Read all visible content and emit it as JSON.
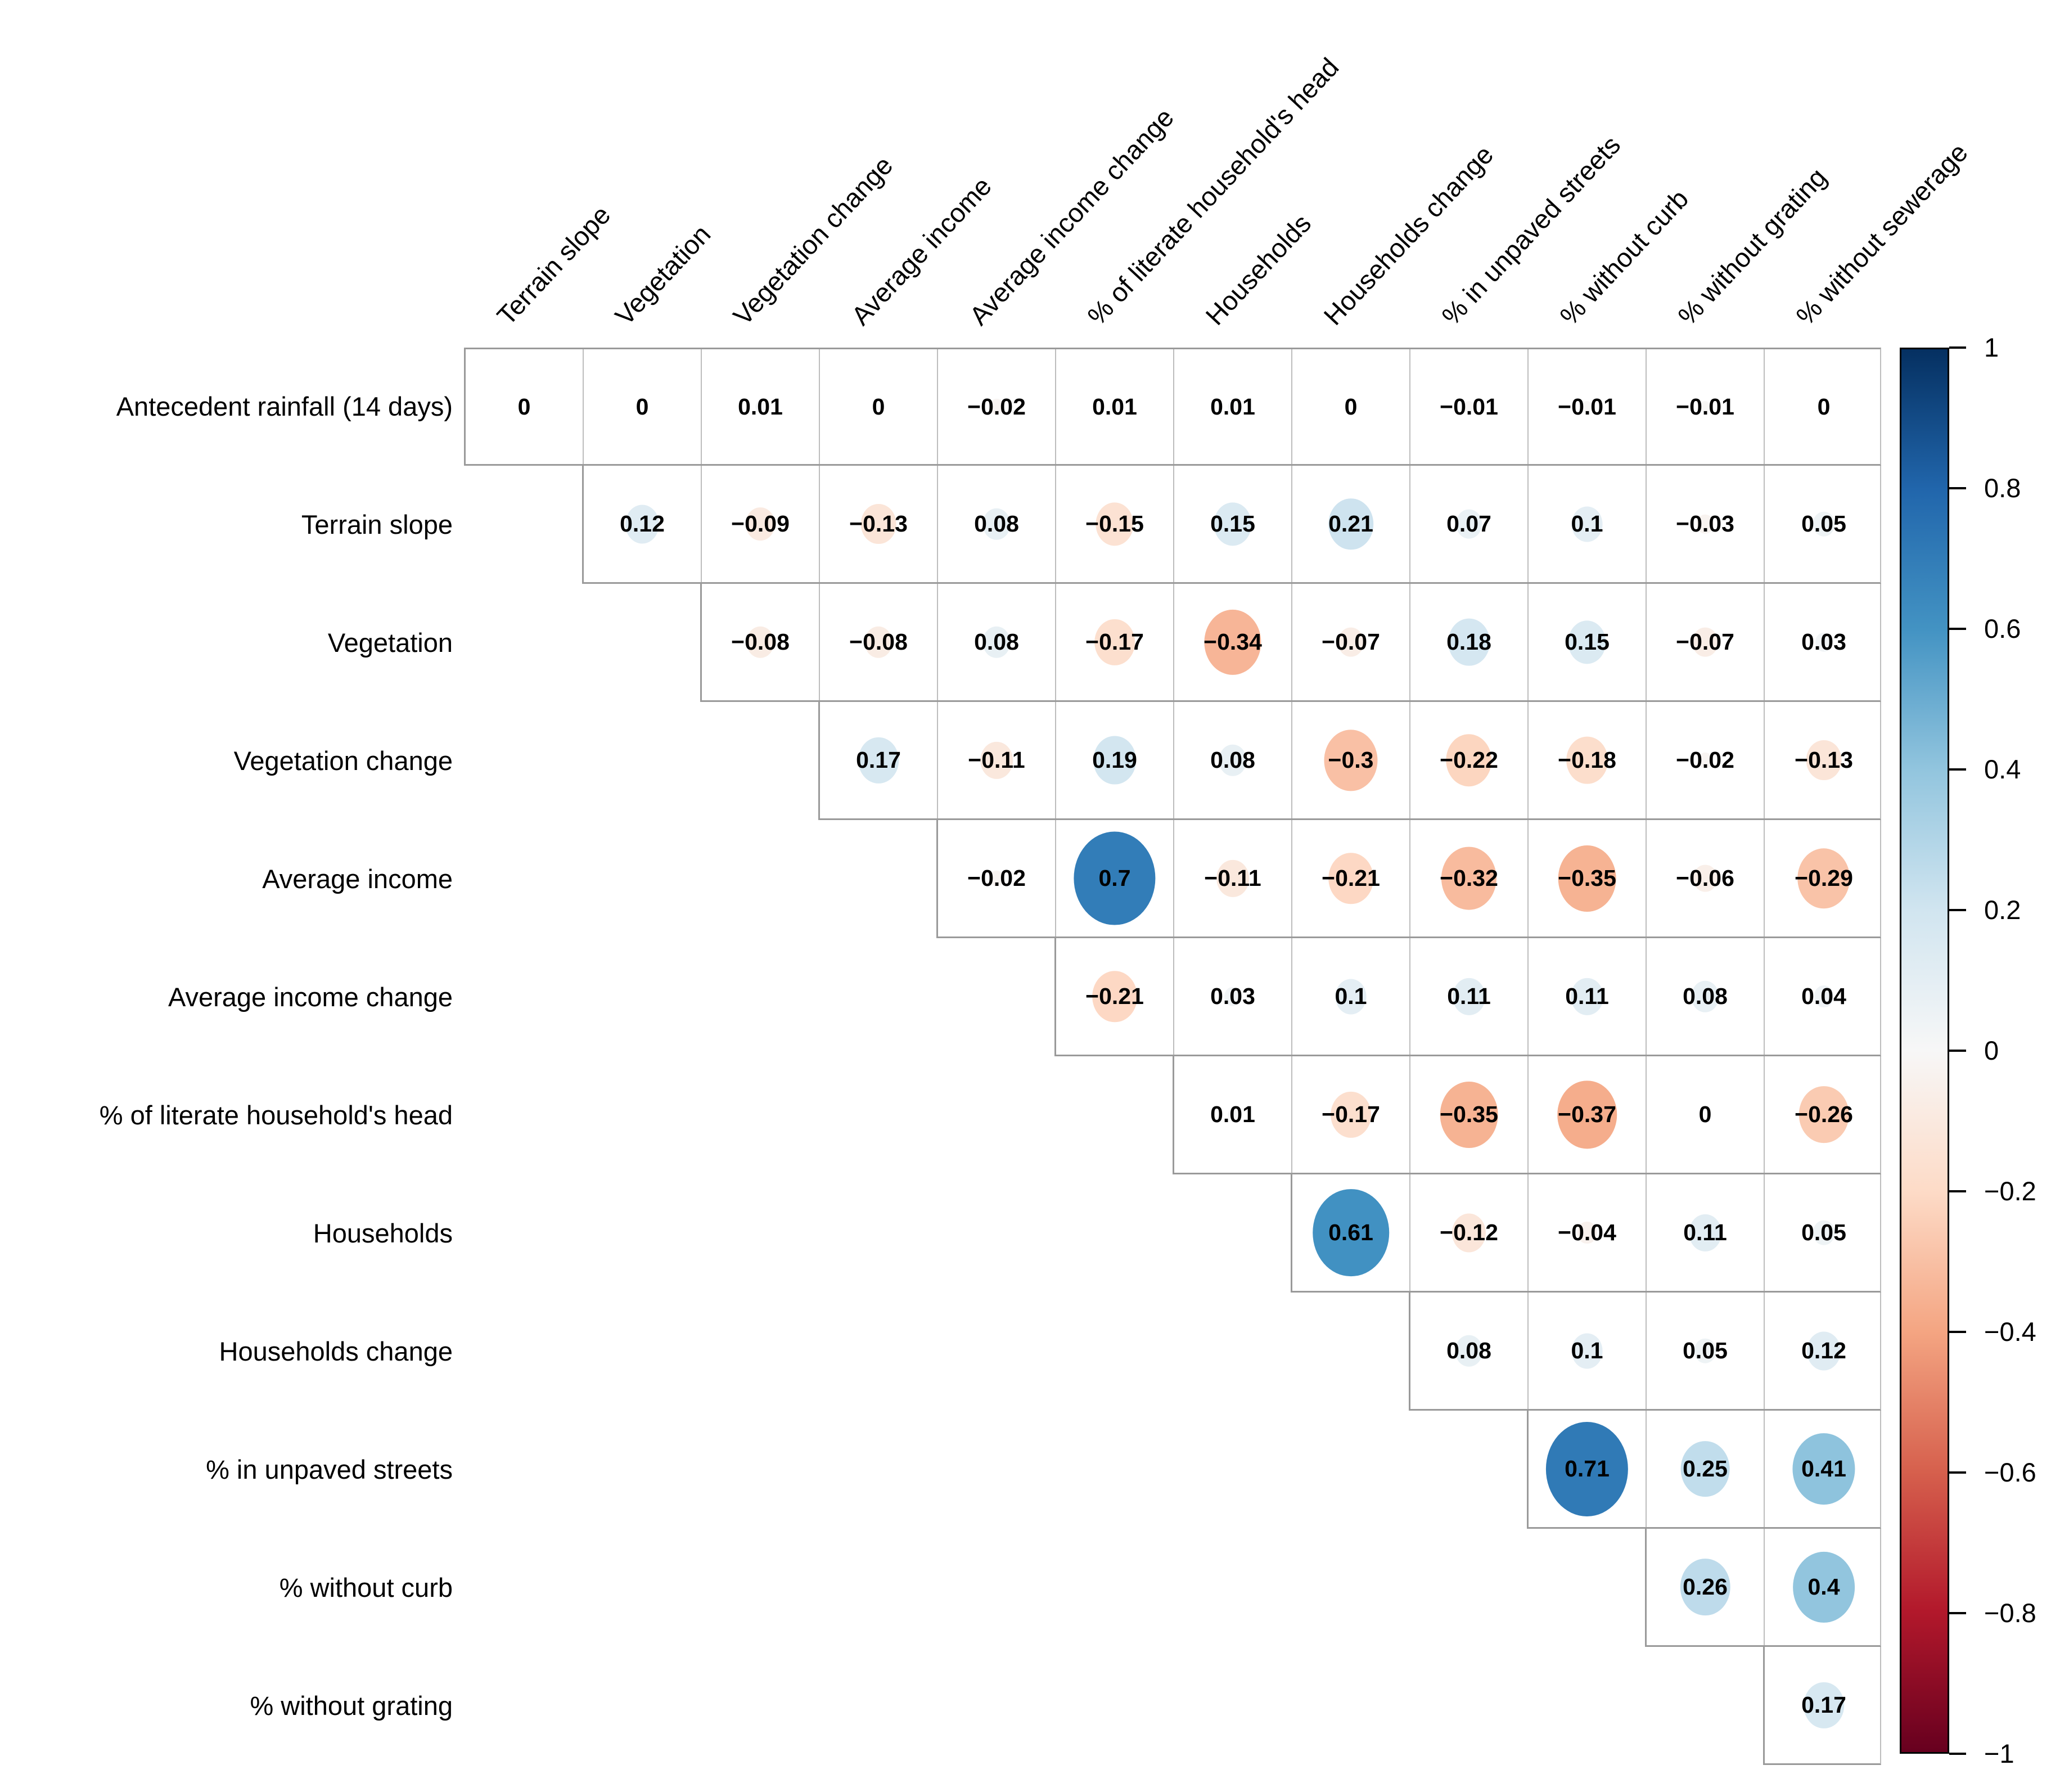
{
  "chart_data": {
    "type": "heatmap",
    "subtype": "upper-triangle correlation matrix with proportional circles (corrplot style)",
    "title": "",
    "row_labels": [
      "Antecedent rainfall (14 days)",
      "Terrain slope",
      "Vegetation",
      "Vegetation change",
      "Average income",
      "Average income change",
      "% of literate household's head",
      "Households",
      "Households change",
      "% in unpaved streets",
      "% without curb",
      "% without grating"
    ],
    "col_labels": [
      "Terrain slope",
      "Vegetation",
      "Vegetation change",
      "Average income",
      "Average income change",
      "% of literate household's head",
      "Households",
      "Households change",
      "% in unpaved streets",
      "% without curb",
      "% without grating",
      "% without sewerage"
    ],
    "values": [
      [
        0,
        0,
        0.01,
        0,
        -0.02,
        0.01,
        0.01,
        0,
        -0.01,
        -0.01,
        -0.01,
        0
      ],
      [
        0.12,
        -0.09,
        -0.13,
        0.08,
        -0.15,
        0.15,
        0.21,
        0.07,
        0.1,
        -0.03,
        0.05
      ],
      [
        -0.08,
        -0.08,
        0.08,
        -0.17,
        -0.34,
        -0.07,
        0.18,
        0.15,
        -0.07,
        0.03
      ],
      [
        0.17,
        -0.11,
        0.19,
        0.08,
        -0.3,
        -0.22,
        -0.18,
        -0.02,
        -0.13
      ],
      [
        -0.02,
        0.7,
        -0.11,
        -0.21,
        -0.32,
        -0.35,
        -0.06,
        -0.29
      ],
      [
        -0.21,
        0.03,
        0.1,
        0.11,
        0.11,
        0.08,
        0.04
      ],
      [
        0.01,
        -0.17,
        -0.35,
        -0.37,
        0,
        -0.26
      ],
      [
        0.61,
        -0.12,
        -0.04,
        0.11,
        0.05
      ],
      [
        0.08,
        0.1,
        0.05,
        0.12
      ],
      [
        0.71,
        0.25,
        0.41
      ],
      [
        0.26,
        0.4
      ],
      [
        0.17
      ]
    ],
    "legend": {
      "position": "right",
      "orientation": "vertical",
      "range": [
        -1,
        1
      ],
      "tick_labels": [
        "1",
        "0.8",
        "0.6",
        "0.4",
        "0.2",
        "0",
        "−0.2",
        "−0.4",
        "−0.6",
        "−0.8",
        "−1"
      ]
    },
    "palette": {
      "name": "RdBu diverging (blue = positive, red = negative)",
      "stops": [
        {
          "value": -1.0,
          "color": "#67001f"
        },
        {
          "value": -0.8,
          "color": "#b2182b"
        },
        {
          "value": -0.6,
          "color": "#d6604d"
        },
        {
          "value": -0.4,
          "color": "#f4a582"
        },
        {
          "value": -0.2,
          "color": "#fddbc7"
        },
        {
          "value": 0.0,
          "color": "#f7f7f7"
        },
        {
          "value": 0.2,
          "color": "#d1e5f0"
        },
        {
          "value": 0.4,
          "color": "#92c5de"
        },
        {
          "value": 0.6,
          "color": "#4393c3"
        },
        {
          "value": 0.8,
          "color": "#2166ac"
        },
        {
          "value": 1.0,
          "color": "#053061"
        }
      ]
    },
    "grid": true
  },
  "colors": {
    "background": "#ffffff",
    "grid_line": "#bdbdbd",
    "triangle_outline": "#9a9a9a",
    "value_text": "#000000",
    "label_text": "#000000",
    "colorbar_border": "#000000"
  }
}
